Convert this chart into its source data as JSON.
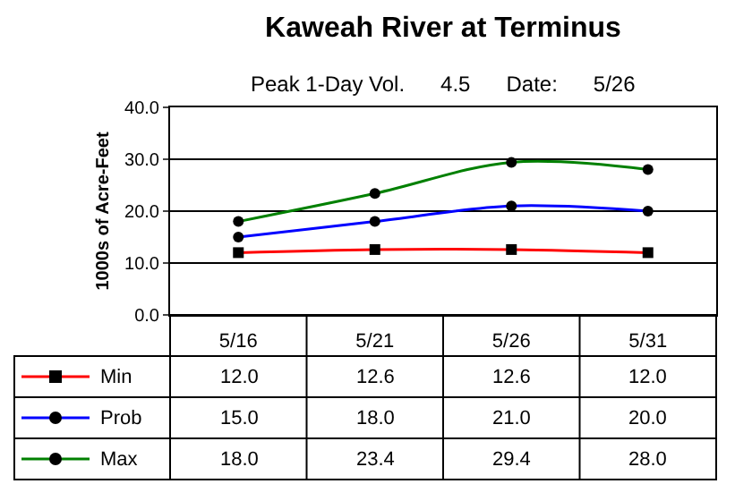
{
  "chart_data": {
    "type": "line",
    "title": "Kaweah River at Terminus",
    "subtitle": "Peak 1-Day Vol.      4.5      Date:      5/26",
    "ylabel": "1000s of Acre-Feet",
    "categories": [
      "5/16",
      "5/21",
      "5/26",
      "5/31"
    ],
    "series": [
      {
        "name": "Min",
        "color": "#ff0000",
        "values": [
          12.0,
          12.6,
          12.6,
          12.0
        ],
        "marker": "square"
      },
      {
        "name": "Prob",
        "color": "#0000ff",
        "values": [
          15.0,
          18.0,
          21.0,
          20.0
        ],
        "marker": "circle"
      },
      {
        "name": "Max",
        "color": "#008000",
        "values": [
          18.0,
          23.4,
          29.4,
          28.0
        ],
        "marker": "circle"
      }
    ],
    "value_labels": [
      [
        "12.0",
        "12.6",
        "12.6",
        "12.0"
      ],
      [
        "15.0",
        "18.0",
        "21.0",
        "20.0"
      ],
      [
        "18.0",
        "23.4",
        "29.4",
        "28.0"
      ]
    ],
    "ylim": [
      0,
      40
    ],
    "yticks": [
      {
        "value": 0,
        "label": "0.0"
      },
      {
        "value": 10,
        "label": "10.0"
      },
      {
        "value": 20,
        "label": "20.0"
      },
      {
        "value": 30,
        "label": "30.0"
      },
      {
        "value": 40,
        "label": "40.0"
      }
    ],
    "grid": "y",
    "legend": "bottom left",
    "line_style": "solid"
  }
}
